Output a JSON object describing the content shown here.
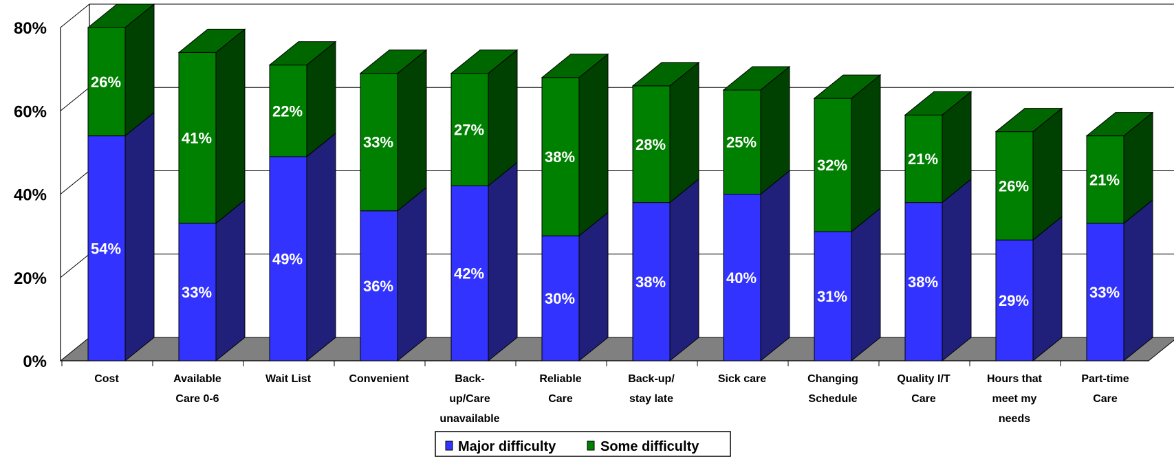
{
  "chart_data": {
    "type": "bar",
    "stacked": true,
    "three_d": true,
    "categories": [
      [
        "Cost"
      ],
      [
        "Available",
        "Care  0-6"
      ],
      [
        "Wait List"
      ],
      [
        "Convenient"
      ],
      [
        "Back-",
        "up/Care",
        "unavailable"
      ],
      [
        "Reliable",
        "Care"
      ],
      [
        "Back-up/",
        "stay  late"
      ],
      [
        "Sick care"
      ],
      [
        "Changing",
        "Schedule"
      ],
      [
        "Quality I/T",
        "Care"
      ],
      [
        "Hours that",
        "meet my",
        "needs"
      ],
      [
        "Part-time",
        "Care"
      ]
    ],
    "series": [
      {
        "name": "Major difficulty",
        "color": "#3333ff",
        "values": [
          54,
          33,
          49,
          36,
          42,
          30,
          38,
          40,
          31,
          38,
          29,
          33
        ],
        "labels": [
          "54%",
          "33%",
          "49%",
          "36%",
          "42%",
          "30%",
          "38%",
          "40%",
          "31%",
          "38%",
          "29%",
          "33%"
        ]
      },
      {
        "name": "Some difficulty",
        "color": "#008000",
        "values": [
          26,
          41,
          22,
          33,
          27,
          38,
          28,
          25,
          32,
          21,
          26,
          21
        ],
        "labels": [
          "26%",
          "41%",
          "22%",
          "33%",
          "27%",
          "38%",
          "28%",
          "25%",
          "32%",
          "21%",
          "26%",
          "21%"
        ]
      }
    ],
    "y_ticks": [
      "0%",
      "20%",
      "40%",
      "60%",
      "80%"
    ],
    "y_tick_values": [
      0,
      20,
      40,
      60,
      80
    ],
    "ylim": [
      0,
      80
    ],
    "title": "",
    "xlabel": "",
    "ylabel": "",
    "grid": true,
    "legend_position": "bottom-center",
    "floor_color": "#808080"
  }
}
